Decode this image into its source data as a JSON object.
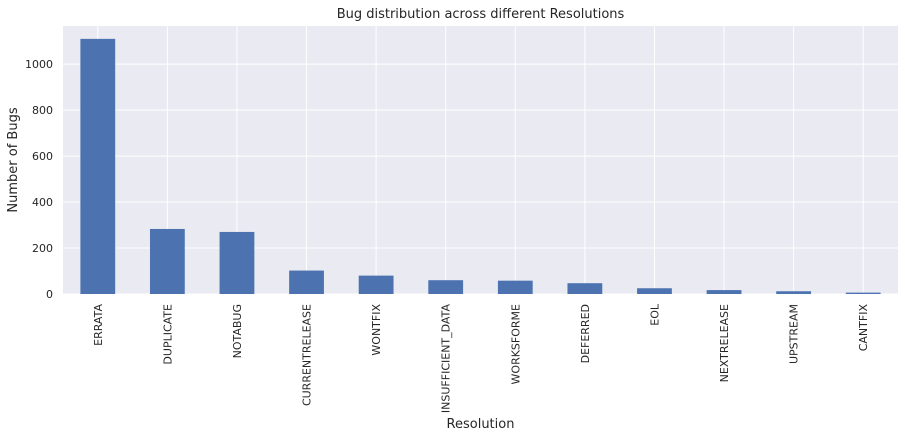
{
  "chart_data": {
    "type": "bar",
    "title": "Bug distribution across different Resolutions",
    "xlabel": "Resolution",
    "ylabel": "Number of Bugs",
    "categories": [
      "ERRATA",
      "DUPLICATE",
      "NOTABUG",
      "CURRENTRELEASE",
      "WONTFIX",
      "INSUFFICIENT_DATA",
      "WORKSFORME",
      "DEFERRED",
      "EOL",
      "NEXTRELEASE",
      "UPSTREAM",
      "CANTFIX"
    ],
    "values": [
      1110,
      283,
      270,
      102,
      80,
      60,
      58,
      47,
      25,
      17,
      12,
      6
    ],
    "ylim": [
      0,
      1166
    ],
    "yticks": [
      0,
      200,
      400,
      600,
      800,
      1000
    ],
    "grid": true,
    "legend": "none",
    "colors": {
      "bar": "#4c72b0",
      "background": "#eaeaf2",
      "grid": "#ffffff"
    }
  }
}
